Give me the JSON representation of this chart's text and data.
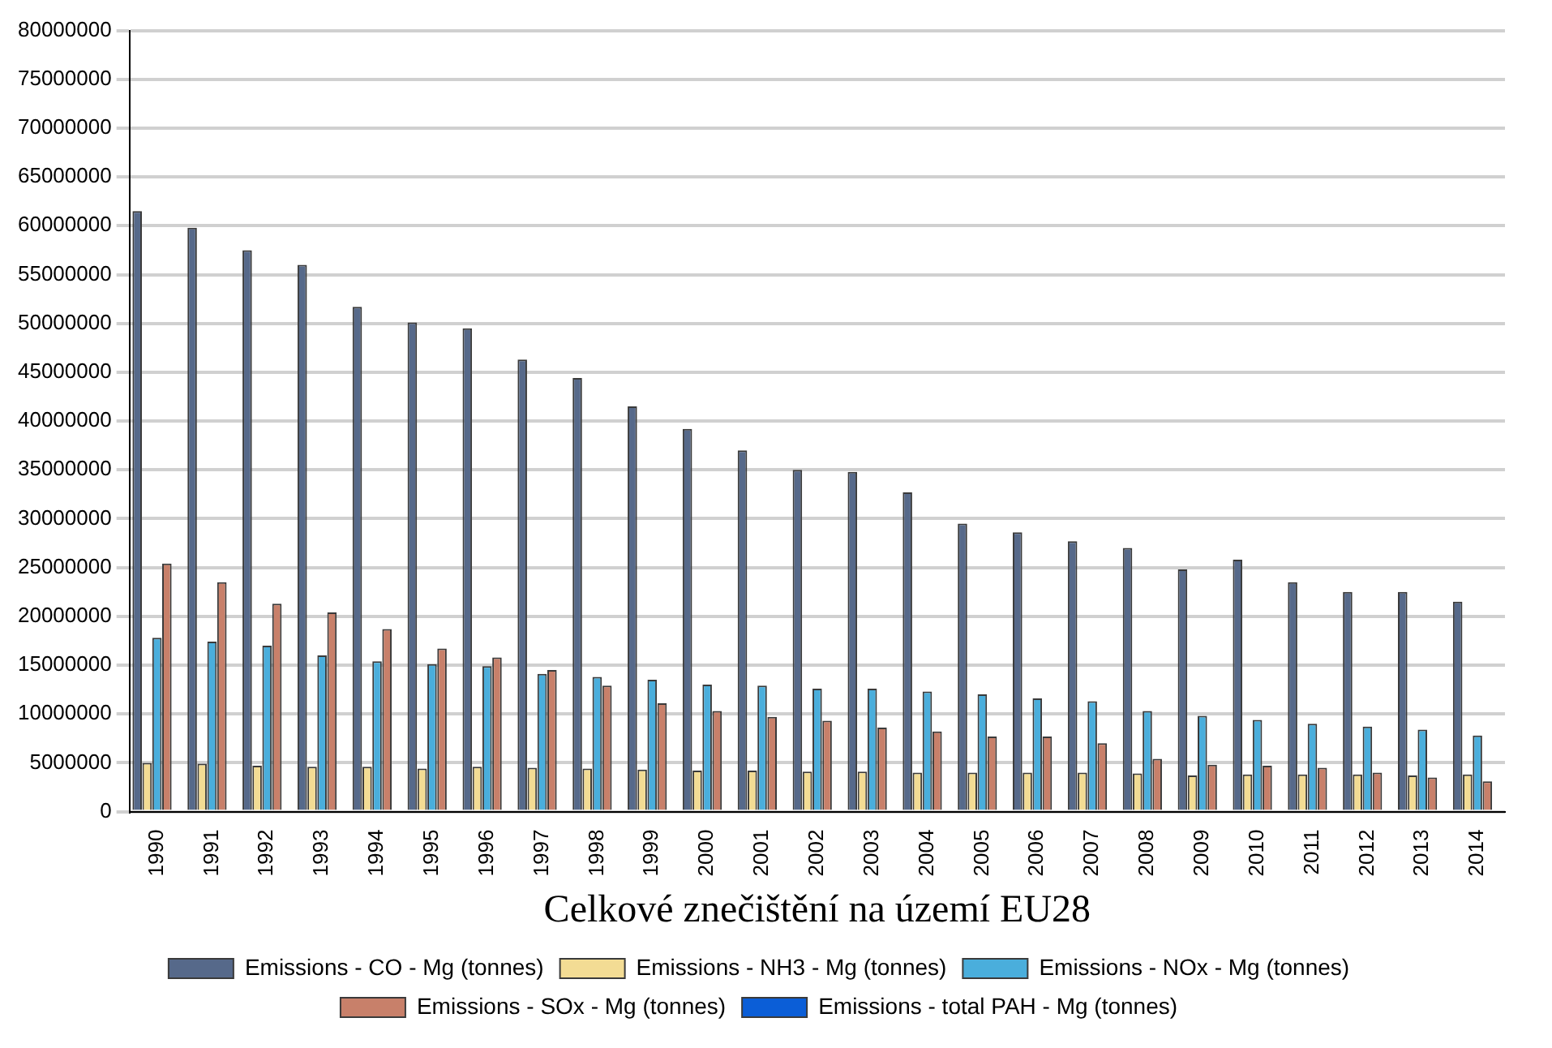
{
  "chart_data": {
    "type": "bar",
    "xlabel": "Celkové znečištění na území EU28",
    "categories": [
      "1990",
      "1991",
      "1992",
      "1993",
      "1994",
      "1995",
      "1996",
      "1997",
      "1998",
      "1999",
      "2000",
      "2001",
      "2002",
      "2003",
      "2004",
      "2005",
      "2006",
      "2007",
      "2008",
      "2009",
      "2010",
      "2011",
      "2012",
      "2013",
      "2014"
    ],
    "series": [
      {
        "name": "Emissions - CO - Mg (tonnes)",
        "color": "#56698a",
        "values": [
          61500000,
          59800000,
          57500000,
          56000000,
          51700000,
          50100000,
          49500000,
          46300000,
          44400000,
          41500000,
          39200000,
          37000000,
          35000000,
          34800000,
          32700000,
          29500000,
          28600000,
          27700000,
          27000000,
          24800000,
          25800000,
          23500000,
          22500000,
          22500000,
          21500000
        ]
      },
      {
        "name": "Emissions - NH3 - Mg (tonnes)",
        "color": "#f3dc94",
        "values": [
          5000000,
          4900000,
          4700000,
          4600000,
          4600000,
          4400000,
          4600000,
          4500000,
          4400000,
          4300000,
          4200000,
          4200000,
          4100000,
          4100000,
          4000000,
          4000000,
          4000000,
          4000000,
          3900000,
          3700000,
          3800000,
          3800000,
          3800000,
          3700000,
          3800000
        ]
      },
      {
        "name": "Emissions - NOx - Mg (tonnes)",
        "color": "#4aaedc",
        "values": [
          17800000,
          17400000,
          17000000,
          16000000,
          15400000,
          15100000,
          14900000,
          14100000,
          13800000,
          13500000,
          13000000,
          12900000,
          12600000,
          12600000,
          12300000,
          12000000,
          11600000,
          11300000,
          10300000,
          9800000,
          9400000,
          9000000,
          8700000,
          8400000,
          7800000
        ]
      },
      {
        "name": "Emissions - SOx - Mg (tonnes)",
        "color": "#c8806a",
        "values": [
          25400000,
          23500000,
          21300000,
          20400000,
          18700000,
          16700000,
          15800000,
          14500000,
          12900000,
          11100000,
          10300000,
          9700000,
          9300000,
          8600000,
          8200000,
          7700000,
          7700000,
          7000000,
          5400000,
          4800000,
          4700000,
          4500000,
          4000000,
          3500000,
          3100000
        ]
      },
      {
        "name": "Emissions - total PAH - Mg (tonnes)",
        "color": "#0b5ed7",
        "values": [
          0,
          0,
          0,
          0,
          0,
          0,
          0,
          0,
          0,
          0,
          0,
          0,
          0,
          0,
          0,
          0,
          0,
          0,
          0,
          0,
          0,
          0,
          0,
          0,
          0
        ]
      }
    ],
    "ylim": [
      0,
      80000000
    ],
    "yticks": [
      0,
      5000000,
      10000000,
      15000000,
      20000000,
      25000000,
      30000000,
      35000000,
      40000000,
      45000000,
      50000000,
      55000000,
      60000000,
      65000000,
      70000000,
      75000000,
      80000000
    ],
    "grid": "y",
    "legend": "bottom"
  }
}
